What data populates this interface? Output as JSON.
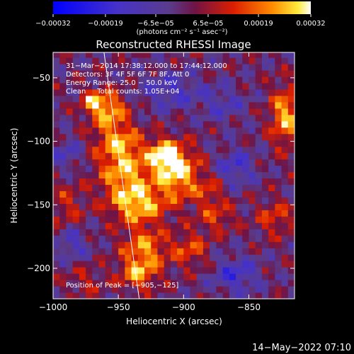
{
  "chart_data": {
    "type": "heatmap",
    "title": "Reconstructed RHESSI Image",
    "xlabel": "Heliocentric X (arcsec)",
    "ylabel": "Heliocentric Y (arcsec)",
    "xlim": [
      -1000,
      -815
    ],
    "ylim": [
      -224,
      -30
    ],
    "x_ticks": [
      -1000,
      -950,
      -900,
      -850
    ],
    "x_tick_labels": [
      "−1000",
      "−950",
      "−900",
      "−850"
    ],
    "y_ticks": [
      -50,
      -100,
      -150,
      -200
    ],
    "y_tick_labels": [
      "−50",
      "−100",
      "−150",
      "−200"
    ],
    "colorbar": {
      "min": -0.00032,
      "max": 0.00032,
      "tick_values": [
        -0.00032,
        -0.00019,
        -6.5e-05,
        6.5e-05,
        0.00019,
        0.00032
      ],
      "tick_labels": [
        "−0.00032",
        "−0.00019",
        "−6.5e−05",
        "6.5e−05",
        "0.00019",
        "0.00032"
      ],
      "units": "(photons cm⁻² s⁻¹ asec⁻²)"
    },
    "annotations": {
      "time_range": "31−Mar−2014 17:38:12.000 to 17:44:12.000",
      "detectors": "Detectors: 3F 4F 5F 6F 7F 8F, Att 0",
      "energy_range": "Energy Range: 25.0 − 50.0 keV",
      "method": "Clean     Total counts: 1.05E+04",
      "peak": "Position of Peak = [−905,−125]"
    },
    "peak_position": [
      -905,
      -125
    ],
    "limb_line": [
      [
        -961,
        -30
      ],
      [
        -934,
        -224
      ]
    ],
    "blobs": [
      {
        "x": -958,
        "y": -75,
        "sx": 10,
        "sy": 10,
        "v": 0.85
      },
      {
        "x": -970,
        "y": -68,
        "sx": 6,
        "sy": 6,
        "v": 0.6
      },
      {
        "x": -950,
        "y": -100,
        "sx": 12,
        "sy": 10,
        "v": 0.7
      },
      {
        "x": -945,
        "y": -125,
        "sx": 14,
        "sy": 14,
        "v": 0.85
      },
      {
        "x": -935,
        "y": -150,
        "sx": 14,
        "sy": 10,
        "v": 0.9
      },
      {
        "x": -905,
        "y": -125,
        "sx": 12,
        "sy": 14,
        "v": 1.0
      },
      {
        "x": -915,
        "y": -110,
        "sx": 8,
        "sy": 8,
        "v": 0.95
      },
      {
        "x": -930,
        "y": -185,
        "sx": 12,
        "sy": 12,
        "v": 0.75
      },
      {
        "x": -935,
        "y": -205,
        "sx": 10,
        "sy": 8,
        "v": 0.65
      },
      {
        "x": -895,
        "y": -185,
        "sx": 10,
        "sy": 10,
        "v": 0.5
      },
      {
        "x": -875,
        "y": -160,
        "sx": 10,
        "sy": 8,
        "v": 0.45
      },
      {
        "x": -880,
        "y": -140,
        "sx": 8,
        "sy": 8,
        "v": 0.4
      },
      {
        "x": -822,
        "y": -80,
        "sx": 8,
        "sy": 16,
        "v": 0.85
      },
      {
        "x": -830,
        "y": -160,
        "sx": 10,
        "sy": 10,
        "v": 0.45
      },
      {
        "x": -990,
        "y": -150,
        "sx": 10,
        "sy": 12,
        "v": 0.35
      },
      {
        "x": -975,
        "y": -210,
        "sx": 10,
        "sy": 8,
        "v": 0.3
      },
      {
        "x": -990,
        "y": -110,
        "sx": 8,
        "sy": 8,
        "v": -0.4
      },
      {
        "x": -910,
        "y": -60,
        "sx": 16,
        "sy": 10,
        "v": -0.45
      },
      {
        "x": -860,
        "y": -205,
        "sx": 12,
        "sy": 10,
        "v": -0.55
      },
      {
        "x": -860,
        "y": -120,
        "sx": 10,
        "sy": 10,
        "v": -0.5
      },
      {
        "x": -870,
        "y": -70,
        "sx": 12,
        "sy": 10,
        "v": -0.35
      },
      {
        "x": -985,
        "y": -180,
        "sx": 8,
        "sy": 8,
        "v": -0.45
      }
    ]
  },
  "footer": {
    "date": "14−May−2022 07:10"
  },
  "colors": {
    "background": "#000000",
    "axis": "#ffffff",
    "limb_line": "#ffffff"
  }
}
